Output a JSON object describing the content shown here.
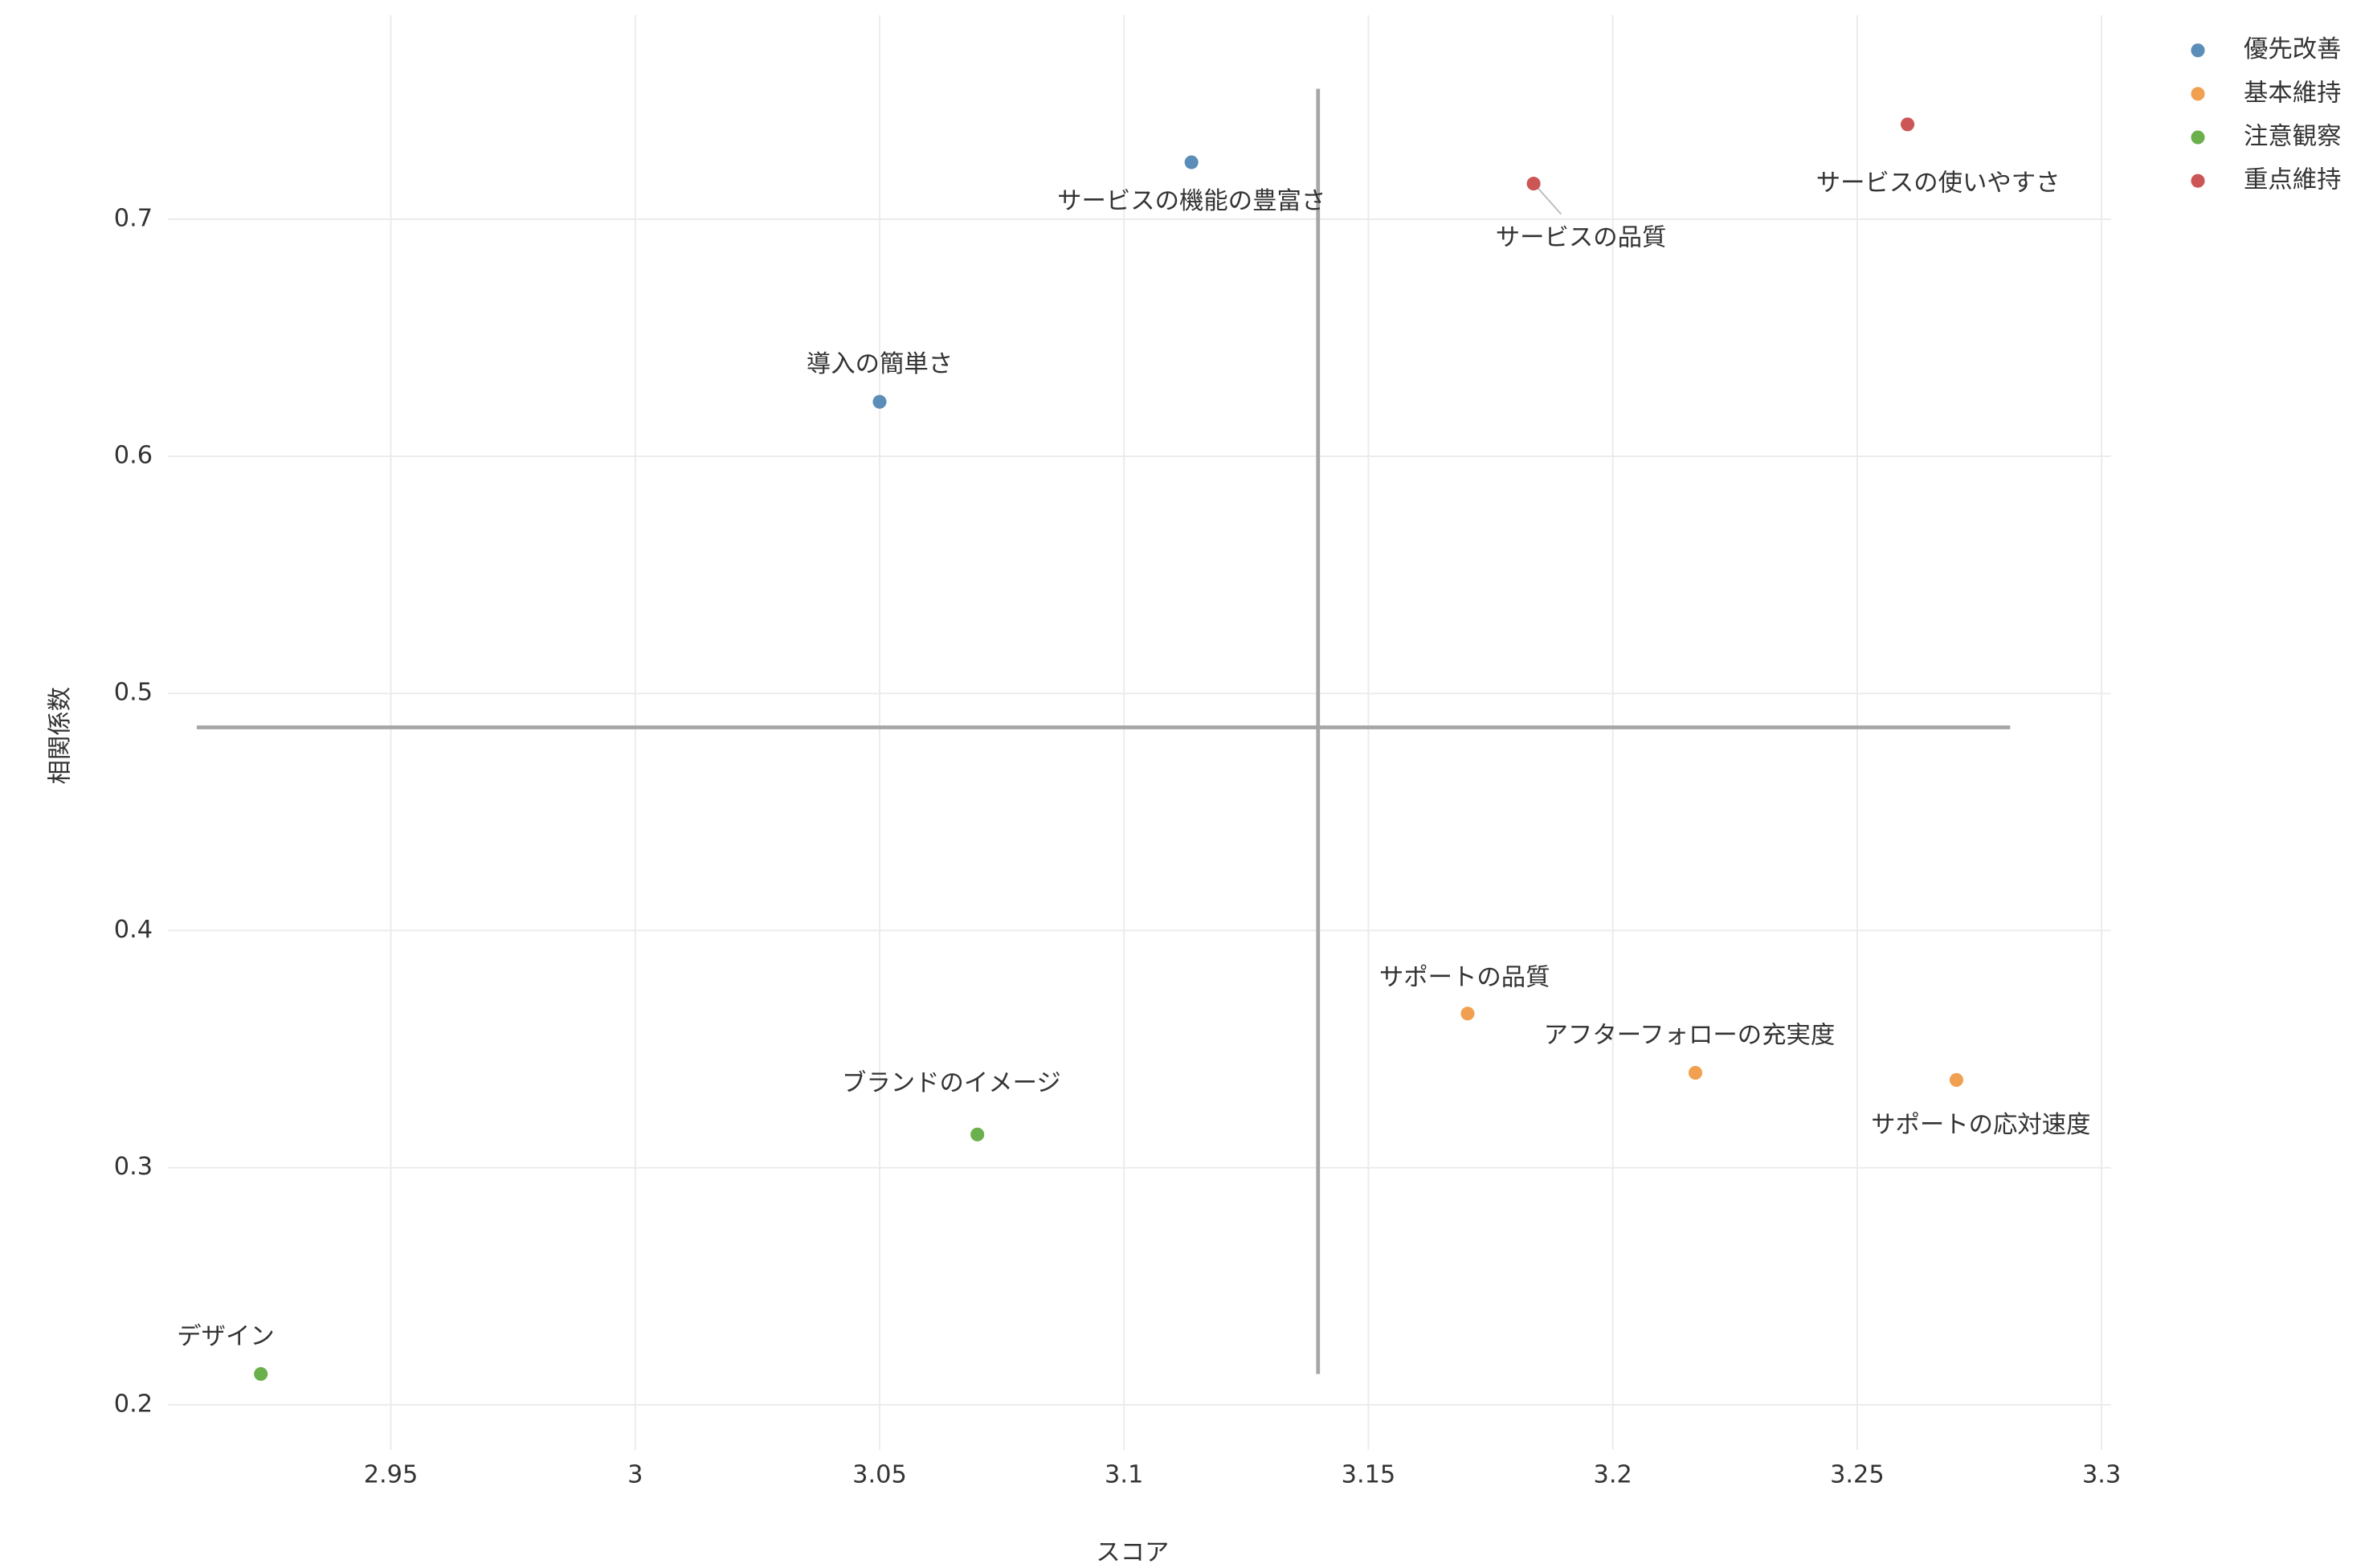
{
  "chart_data": {
    "type": "scatter",
    "x_label": "スコア",
    "y_label": "相関係数",
    "xlim": [
      2.9044,
      3.3019
    ],
    "ylim": [
      0.181,
      0.786
    ],
    "xticks": [
      2.95,
      3,
      3.05,
      3.1,
      3.15,
      3.2,
      3.25,
      3.3
    ],
    "yticks": [
      0.2,
      0.3,
      0.4,
      0.5,
      0.6,
      0.7
    ],
    "grid": true,
    "legend": "top-right",
    "series": [
      {
        "name": "優先改善",
        "color": "#5b8db8",
        "x": [
          3.1138,
          3.05
        ],
        "y": [
          0.724,
          0.623
        ],
        "labels": [
          "サービスの機能の豊富さ",
          "導入の簡単さ"
        ]
      },
      {
        "name": "基本維持",
        "color": "#f0a050",
        "x": [
          3.1703,
          3.2169,
          3.2703
        ],
        "y": [
          0.365,
          0.34,
          0.337
        ],
        "labels": [
          "サポートの品質",
          "アフターフォローの充実度",
          "サポートの応対速度"
        ]
      },
      {
        "name": "注意観察",
        "color": "#6ab04c",
        "x": [
          3.07,
          2.9234
        ],
        "y": [
          0.314,
          0.213
        ],
        "labels": [
          "ブランドのイメージ",
          "デザイン"
        ]
      },
      {
        "name": "重点維持",
        "color": "#cc5555",
        "x": [
          3.2603,
          3.1838
        ],
        "y": [
          0.74,
          0.715
        ],
        "labels": [
          "サービスの使いやすさ",
          "サービスの品質"
        ]
      }
    ],
    "vline": {
      "x": 3.1397,
      "y": [
        0.213,
        0.755
      ]
    },
    "hline": {
      "y": 0.4857,
      "x": [
        2.9103,
        3.2813
      ]
    }
  }
}
